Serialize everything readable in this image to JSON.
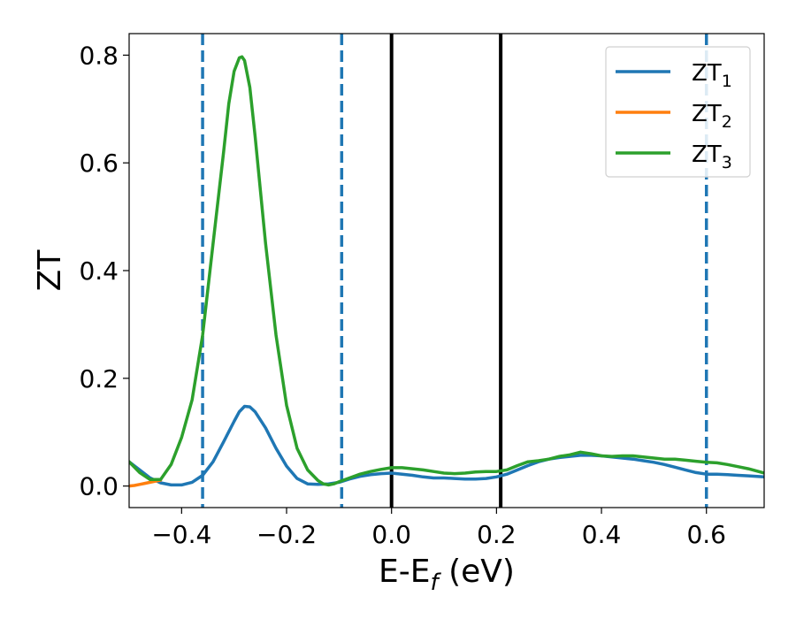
{
  "chart_data": {
    "type": "line",
    "title": "",
    "xlabel": "E-E",
    "xlabel_sub": "f",
    "xlabel_unit": " (eV)",
    "ylabel": "ZT",
    "xlim": [
      -0.5,
      0.71
    ],
    "ylim": [
      -0.04,
      0.84
    ],
    "xticks": [
      -0.4,
      -0.2,
      0.0,
      0.2,
      0.4,
      0.6
    ],
    "xtick_labels": [
      "−0.4",
      "−0.2",
      "0.0",
      "0.2",
      "0.4",
      "0.6"
    ],
    "yticks": [
      0.0,
      0.2,
      0.4,
      0.6,
      0.8
    ],
    "ytick_labels": [
      "0.0",
      "0.2",
      "0.4",
      "0.6",
      "0.8"
    ],
    "grid": false,
    "legend_position": "top-right",
    "vlines": [
      {
        "x": -0.36,
        "style": "dashed",
        "color": "#1f77b4"
      },
      {
        "x": -0.095,
        "style": "dashed",
        "color": "#1f77b4"
      },
      {
        "x": 0.0,
        "style": "solid",
        "color": "#000000"
      },
      {
        "x": 0.208,
        "style": "solid",
        "color": "#000000"
      },
      {
        "x": 0.6,
        "style": "dashed",
        "color": "#1f77b4"
      }
    ],
    "series": [
      {
        "name": "ZT",
        "sub": "1",
        "color": "#1f77b4",
        "x": [
          -0.5,
          -0.48,
          -0.46,
          -0.44,
          -0.42,
          -0.4,
          -0.38,
          -0.36,
          -0.34,
          -0.32,
          -0.3,
          -0.29,
          -0.28,
          -0.27,
          -0.26,
          -0.24,
          -0.22,
          -0.2,
          -0.18,
          -0.16,
          -0.14,
          -0.12,
          -0.1,
          -0.08,
          -0.06,
          -0.04,
          -0.02,
          0.0,
          0.02,
          0.04,
          0.06,
          0.08,
          0.1,
          0.12,
          0.14,
          0.16,
          0.18,
          0.2,
          0.22,
          0.24,
          0.26,
          0.28,
          0.3,
          0.32,
          0.34,
          0.36,
          0.38,
          0.4,
          0.42,
          0.44,
          0.46,
          0.48,
          0.5,
          0.52,
          0.54,
          0.56,
          0.58,
          0.6,
          0.62,
          0.64,
          0.66,
          0.68,
          0.71
        ],
        "y": [
          0.045,
          0.03,
          0.015,
          0.006,
          0.002,
          0.002,
          0.007,
          0.02,
          0.045,
          0.082,
          0.12,
          0.138,
          0.148,
          0.147,
          0.138,
          0.108,
          0.07,
          0.037,
          0.014,
          0.004,
          0.003,
          0.004,
          0.007,
          0.013,
          0.018,
          0.021,
          0.023,
          0.024,
          0.022,
          0.02,
          0.017,
          0.015,
          0.015,
          0.014,
          0.013,
          0.013,
          0.014,
          0.017,
          0.022,
          0.03,
          0.038,
          0.045,
          0.05,
          0.053,
          0.055,
          0.057,
          0.057,
          0.056,
          0.054,
          0.052,
          0.05,
          0.047,
          0.044,
          0.04,
          0.035,
          0.03,
          0.025,
          0.022,
          0.022,
          0.021,
          0.02,
          0.019,
          0.017
        ]
      },
      {
        "name": "ZT",
        "sub": "2",
        "color": "#ff7f0e",
        "x": [
          -0.5,
          -0.49,
          -0.48,
          -0.47,
          -0.46,
          -0.45,
          -0.44
        ],
        "y": [
          0.0,
          0.001,
          0.003,
          0.005,
          0.007,
          0.009,
          0.011
        ]
      },
      {
        "name": "ZT",
        "sub": "3",
        "color": "#2ca02c",
        "x": [
          -0.5,
          -0.48,
          -0.46,
          -0.44,
          -0.42,
          -0.4,
          -0.38,
          -0.36,
          -0.34,
          -0.32,
          -0.31,
          -0.3,
          -0.29,
          -0.285,
          -0.28,
          -0.27,
          -0.26,
          -0.24,
          -0.22,
          -0.2,
          -0.18,
          -0.16,
          -0.14,
          -0.13,
          -0.12,
          -0.11,
          -0.1,
          -0.08,
          -0.06,
          -0.04,
          -0.02,
          0.0,
          0.02,
          0.04,
          0.06,
          0.08,
          0.1,
          0.12,
          0.14,
          0.16,
          0.18,
          0.2,
          0.22,
          0.24,
          0.26,
          0.28,
          0.3,
          0.32,
          0.34,
          0.36,
          0.38,
          0.4,
          0.42,
          0.44,
          0.46,
          0.48,
          0.5,
          0.52,
          0.54,
          0.56,
          0.58,
          0.6,
          0.62,
          0.64,
          0.66,
          0.68,
          0.71
        ],
        "y": [
          0.045,
          0.025,
          0.012,
          0.012,
          0.04,
          0.09,
          0.16,
          0.28,
          0.45,
          0.62,
          0.71,
          0.77,
          0.795,
          0.797,
          0.79,
          0.74,
          0.65,
          0.45,
          0.28,
          0.15,
          0.07,
          0.03,
          0.01,
          0.004,
          0.002,
          0.004,
          0.008,
          0.015,
          0.022,
          0.027,
          0.031,
          0.034,
          0.034,
          0.032,
          0.03,
          0.027,
          0.024,
          0.023,
          0.024,
          0.026,
          0.027,
          0.027,
          0.03,
          0.038,
          0.045,
          0.047,
          0.05,
          0.055,
          0.058,
          0.063,
          0.06,
          0.056,
          0.055,
          0.056,
          0.056,
          0.054,
          0.052,
          0.05,
          0.05,
          0.048,
          0.046,
          0.044,
          0.043,
          0.04,
          0.036,
          0.032,
          0.024
        ]
      }
    ]
  }
}
